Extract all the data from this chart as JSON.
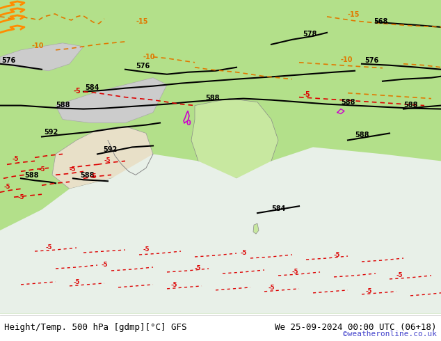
{
  "title_left": "Height/Temp. 500 hPa [gdmp][°C] GFS",
  "title_right": "We 25-09-2024 00:00 UTC (06+18)",
  "credit": "©weatheronline.co.uk",
  "bg_color": "#b3e08a",
  "gray_color": "#cccccc",
  "fig_width": 6.34,
  "fig_height": 4.9,
  "dpi": 100,
  "bottom_bar_color": "#ffffff",
  "title_fontsize": 9,
  "credit_fontsize": 8,
  "credit_color": "#4444cc"
}
